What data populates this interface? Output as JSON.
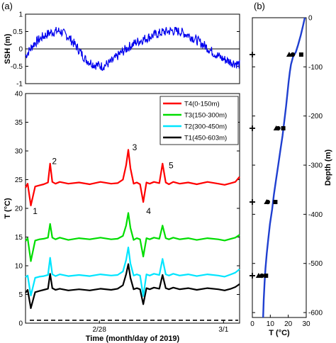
{
  "panel_labels": {
    "a": "(a)",
    "b": "(b)"
  },
  "colors": {
    "t4": "#ff0000",
    "t3": "#00dd00",
    "t2": "#00e5ff",
    "t1": "#000000",
    "ssh": "#0000ee",
    "profile": "#1f3fd0"
  },
  "chart_data": [
    {
      "type": "line",
      "panel": "a-top",
      "xlabel": "",
      "ylabel": "SSH (m)",
      "ylim": [
        -1,
        1
      ],
      "yticks": [
        "-1",
        "-0.5",
        "0",
        "0.5",
        "1"
      ],
      "xlim": [
        0,
        1
      ],
      "zero_line": true,
      "series": [
        {
          "x": [
            0.0,
            0.04,
            0.08,
            0.12,
            0.16,
            0.2,
            0.24,
            0.28,
            0.32,
            0.36,
            0.4,
            0.44,
            0.48,
            0.52,
            0.56,
            0.6,
            0.64,
            0.68,
            0.72,
            0.76,
            0.8,
            0.84,
            0.88,
            0.92,
            0.96,
            1.0
          ],
          "values": [
            -0.2,
            0.15,
            0.35,
            0.48,
            0.52,
            0.35,
            0.05,
            -0.3,
            -0.45,
            -0.5,
            -0.38,
            -0.15,
            0.05,
            0.2,
            0.3,
            0.4,
            0.48,
            0.52,
            0.5,
            0.4,
            0.25,
            0.08,
            -0.12,
            -0.28,
            -0.38,
            -0.45
          ]
        }
      ]
    },
    {
      "type": "line",
      "panel": "a-bottom",
      "xlabel": "Time (month/day of 2019)",
      "ylabel": "T (°C)",
      "ylim": [
        0,
        40
      ],
      "yticks": [
        "0",
        "5",
        "10",
        "15",
        "20",
        "25",
        "30",
        "35",
        "40"
      ],
      "xlim": [
        0,
        1
      ],
      "categories": [
        "2/28",
        "3/1"
      ],
      "category_x": [
        0.345,
        0.925
      ],
      "dashed_reference": 0.5,
      "legend": "top-right",
      "series": [
        {
          "name": "T4(0-150m)",
          "x": [
            0.0,
            0.01,
            0.025,
            0.045,
            0.065,
            0.085,
            0.105,
            0.115,
            0.125,
            0.14,
            0.16,
            0.2,
            0.25,
            0.3,
            0.35,
            0.4,
            0.43,
            0.455,
            0.47,
            0.48,
            0.49,
            0.505,
            0.52,
            0.535,
            0.55,
            0.565,
            0.58,
            0.6,
            0.625,
            0.64,
            0.655,
            0.67,
            0.69,
            0.72,
            0.76,
            0.8,
            0.85,
            0.9,
            0.93,
            0.96,
            0.98,
            1.0
          ],
          "values": [
            23.6,
            24.3,
            20.5,
            23.8,
            24.0,
            24.2,
            24.5,
            27.8,
            24.6,
            24.3,
            24.6,
            24.3,
            24.5,
            24.2,
            24.6,
            24.3,
            24.4,
            25.0,
            27.5,
            30.2,
            27.0,
            24.3,
            24.5,
            24.2,
            21.1,
            24.5,
            24.3,
            24.6,
            24.4,
            27.8,
            24.5,
            24.2,
            24.6,
            24.3,
            24.5,
            24.2,
            24.6,
            24.3,
            24.1,
            24.4,
            24.6,
            25.5
          ]
        },
        {
          "name": "T3(150-300m)",
          "x": [
            0.0,
            0.01,
            0.025,
            0.045,
            0.065,
            0.085,
            0.105,
            0.115,
            0.125,
            0.14,
            0.16,
            0.2,
            0.25,
            0.3,
            0.35,
            0.4,
            0.43,
            0.455,
            0.47,
            0.48,
            0.49,
            0.505,
            0.52,
            0.535,
            0.55,
            0.565,
            0.58,
            0.6,
            0.625,
            0.64,
            0.655,
            0.67,
            0.69,
            0.72,
            0.76,
            0.8,
            0.85,
            0.9,
            0.93,
            0.96,
            0.98,
            1.0
          ],
          "values": [
            14.3,
            14.8,
            10.8,
            14.4,
            14.6,
            14.7,
            14.9,
            17.3,
            14.9,
            14.6,
            14.9,
            14.5,
            14.8,
            14.6,
            14.9,
            14.6,
            14.7,
            15.2,
            17.0,
            19.2,
            16.6,
            14.5,
            14.8,
            14.6,
            11.6,
            14.8,
            14.6,
            14.9,
            14.7,
            17.0,
            14.8,
            14.6,
            14.9,
            14.6,
            14.8,
            14.5,
            14.8,
            14.6,
            14.4,
            14.7,
            14.9,
            15.4
          ]
        },
        {
          "name": "T2(300-450m)",
          "x": [
            0.0,
            0.01,
            0.025,
            0.045,
            0.065,
            0.085,
            0.105,
            0.115,
            0.125,
            0.14,
            0.16,
            0.2,
            0.25,
            0.3,
            0.35,
            0.4,
            0.43,
            0.455,
            0.47,
            0.48,
            0.49,
            0.505,
            0.52,
            0.535,
            0.55,
            0.565,
            0.58,
            0.6,
            0.625,
            0.64,
            0.655,
            0.67,
            0.69,
            0.72,
            0.76,
            0.8,
            0.85,
            0.9,
            0.93,
            0.96,
            0.98,
            1.0
          ],
          "values": [
            8.0,
            8.3,
            4.8,
            7.9,
            8.1,
            8.2,
            8.4,
            11.4,
            8.5,
            8.2,
            8.5,
            8.2,
            8.4,
            8.2,
            8.5,
            8.3,
            8.4,
            9.0,
            11.0,
            13.2,
            10.4,
            8.3,
            8.5,
            8.3,
            4.7,
            8.5,
            8.3,
            8.6,
            8.4,
            11.2,
            8.5,
            8.3,
            8.6,
            8.3,
            8.5,
            8.2,
            8.5,
            8.3,
            8.1,
            8.5,
            8.8,
            9.4
          ]
        },
        {
          "name": "T1(450-603m)",
          "x": [
            0.0,
            0.01,
            0.025,
            0.045,
            0.065,
            0.085,
            0.105,
            0.115,
            0.125,
            0.14,
            0.16,
            0.2,
            0.25,
            0.3,
            0.35,
            0.4,
            0.43,
            0.455,
            0.47,
            0.48,
            0.49,
            0.505,
            0.52,
            0.535,
            0.55,
            0.565,
            0.58,
            0.6,
            0.625,
            0.64,
            0.655,
            0.67,
            0.69,
            0.72,
            0.76,
            0.8,
            0.85,
            0.9,
            0.93,
            0.96,
            0.98,
            1.0
          ],
          "values": [
            5.3,
            5.8,
            2.6,
            5.4,
            5.6,
            5.8,
            6.0,
            8.6,
            6.1,
            5.8,
            6.0,
            5.7,
            5.9,
            5.7,
            6.0,
            5.8,
            6.0,
            6.6,
            8.5,
            10.3,
            7.9,
            5.9,
            6.1,
            5.9,
            3.3,
            6.1,
            5.9,
            6.2,
            6.0,
            8.4,
            6.1,
            5.9,
            6.2,
            5.9,
            6.1,
            5.8,
            6.1,
            5.9,
            5.7,
            6.0,
            6.3,
            6.8
          ]
        }
      ],
      "annotations": [
        {
          "text": "1",
          "x": 0.045,
          "y": 19.5
        },
        {
          "text": "2",
          "x": 0.135,
          "y": 28.2
        },
        {
          "text": "3",
          "x": 0.51,
          "y": 30.6
        },
        {
          "text": "4",
          "x": 0.575,
          "y": 19.5
        },
        {
          "text": "5",
          "x": 0.68,
          "y": 27.5
        }
      ]
    },
    {
      "type": "line",
      "panel": "b",
      "xlabel": "T (°C)",
      "ylabel": "Depth (m)",
      "xlim": [
        0,
        30
      ],
      "xticks": [
        "0",
        "10",
        "20",
        "30"
      ],
      "ylim": [
        0,
        -610
      ],
      "yticks": [
        "0",
        "-100",
        "-200",
        "-300",
        "-400",
        "-500",
        "-600"
      ],
      "profile": {
        "temp": [
          29.2,
          28.3,
          27.0,
          25.5,
          24.2,
          22.6,
          21.5,
          20.9,
          20.2,
          19.5,
          18.8,
          17.8,
          16.8,
          15.6,
          14.4,
          13.2,
          12.0,
          11.0,
          9.8,
          8.9,
          8.0,
          7.3,
          6.8,
          6.3,
          6.0
        ],
        "depth": [
          0,
          -15,
          -35,
          -55,
          -70,
          -80,
          -95,
          -110,
          -130,
          -155,
          -180,
          -210,
          -240,
          -270,
          -300,
          -330,
          -360,
          -390,
          -420,
          -450,
          -480,
          -510,
          -540,
          -575,
          -610
        ]
      },
      "markers": {
        "plus": {
          "temp": [
            0,
            0,
            0,
            0
          ],
          "depth": [
            -75,
            -225,
            -375,
            -525
          ]
        },
        "triangle": {
          "temp": [
            20.5,
            13.3,
            8.0,
            3.5
          ],
          "depth": [
            -75,
            -225,
            -375,
            -525
          ]
        },
        "circle": {
          "temp": [
            22.5,
            14.4,
            8.6,
            5.3
          ],
          "depth": [
            -75,
            -225,
            -375,
            -525
          ]
        },
        "square": {
          "temp": [
            27.2,
            17.2,
            12.8,
            7.6
          ],
          "depth": [
            -75,
            -225,
            -375,
            -525
          ]
        }
      }
    }
  ]
}
